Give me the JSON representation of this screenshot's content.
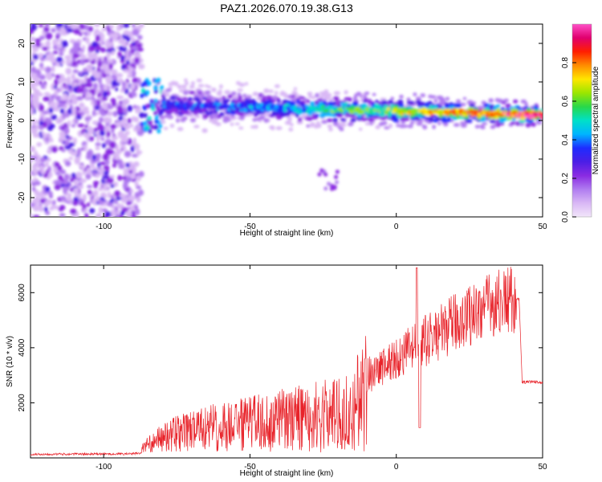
{
  "title": "PAZ1.2026.070.19.38.G13",
  "colors": {
    "snr_line": "#e8232a",
    "colormap": [
      "#f2e6fa",
      "#d9b8f5",
      "#b07cf0",
      "#8a2be2",
      "#4b1ee6",
      "#1e2cff",
      "#00b4ff",
      "#00e0c8",
      "#28d84a",
      "#9be600",
      "#ffe600",
      "#ff8c00",
      "#ff1e00",
      "#e0006e",
      "#ff50c8"
    ]
  },
  "chart_data": [
    {
      "type": "heatmap",
      "title": "PAZ1.2026.070.19.38.G13",
      "xlabel": "Height of straight line (km)",
      "ylabel": "Frequency (Hz)",
      "xlim": [
        -125,
        50
      ],
      "ylim": [
        -25,
        25
      ],
      "xticks": [
        -100,
        -50,
        0,
        50
      ],
      "yticks": [
        -20,
        -10,
        0,
        10,
        20
      ],
      "colorbar": {
        "label": "Normalized spectral amplitude",
        "range": [
          0.0,
          1.0
        ],
        "ticks": [
          0.0,
          0.2,
          0.4,
          0.6,
          0.8
        ],
        "tick_labels": [
          "0.0",
          "0.2",
          "0.4",
          "0.6",
          "0.8"
        ]
      },
      "regions": [
        {
          "name": "noise",
          "x_range": [
            -125,
            -87
          ],
          "freq_range": [
            -25,
            25
          ],
          "amplitude": [
            0.05,
            0.3
          ]
        },
        {
          "name": "transition",
          "x_range": [
            -87,
            -80
          ],
          "freq_center": 4,
          "amplitude": [
            0.2,
            0.5
          ]
        },
        {
          "name": "signal",
          "x_range": [
            -80,
            50
          ],
          "freq_center_start": 4,
          "freq_center_end": 1.5,
          "amplitude_start": 0.35,
          "amplitude_end": 1.0
        },
        {
          "name": "echo",
          "x_range": [
            -27,
            -20
          ],
          "freq_center": -15,
          "amplitude": [
            0.1,
            0.25
          ]
        }
      ]
    },
    {
      "type": "line",
      "xlabel": "Height of straight line (km)",
      "ylabel": "SNR (10 * v/v)",
      "xlim": [
        -125,
        50
      ],
      "ylim": [
        0,
        7000
      ],
      "xticks": [
        -100,
        -50,
        0,
        50
      ],
      "yticks": [
        2000,
        4000,
        6000
      ],
      "series": [
        {
          "name": "SNR",
          "x": [
            -125,
            -110,
            -100,
            -90,
            -87,
            -85,
            -80,
            -75,
            -70,
            -60,
            -50,
            -40,
            -30,
            -20,
            -15,
            -10,
            -5,
            0,
            5,
            10,
            15,
            20,
            25,
            30,
            35,
            40,
            42,
            43,
            45,
            50
          ],
          "y": [
            130,
            140,
            140,
            150,
            180,
            350,
            650,
            850,
            950,
            1150,
            1300,
            1450,
            1600,
            1750,
            1850,
            3000,
            3300,
            3600,
            3950,
            4250,
            4550,
            4900,
            5200,
            5450,
            5650,
            5750,
            5750,
            2750,
            2750,
            2750
          ]
        }
      ]
    }
  ]
}
